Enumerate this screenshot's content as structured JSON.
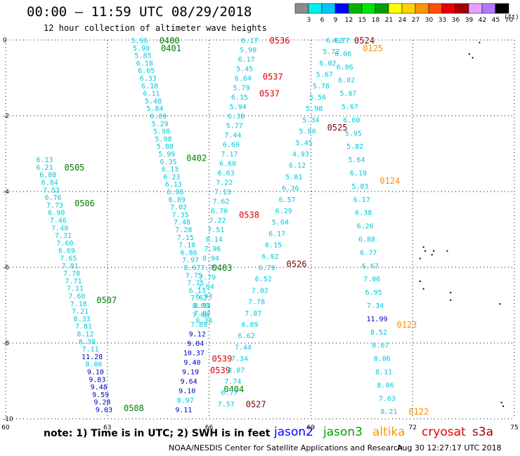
{
  "title": "00:00 – 11:59 UTC 08/29/2018",
  "subtitle": "12 hour collection of altimeter wave heights",
  "colorbar": {
    "ticks": [
      "3",
      "6",
      "9",
      "12",
      "15",
      "18",
      "21",
      "24",
      "27",
      "30",
      "33",
      "36",
      "39",
      "42",
      "45",
      "70"
    ],
    "unit": "(ft)",
    "colors": [
      "#8c8c8c",
      "#00f0f0",
      "#00c8ff",
      "#0000ff",
      "#00b400",
      "#00e600",
      "#00a000",
      "#ffff00",
      "#ffd200",
      "#ff9600",
      "#ff5000",
      "#e60000",
      "#a00000",
      "#e6a0ff",
      "#b478ff",
      "#000000"
    ]
  },
  "note": "note: 1) Time is in UTC; 2) SWH is in feet",
  "credit": "NOAA/NESDIS Center for Satellite Applications and Research",
  "generated": "Aug 30 12:27:17 UTC 2018",
  "satellites": [
    {
      "name": "jason2",
      "color": "#0000ff"
    },
    {
      "name": "jason3",
      "color": "#00a000"
    },
    {
      "name": "altika",
      "color": "#ff9600"
    },
    {
      "name": "cryosat",
      "color": "#e60000"
    },
    {
      "name": "s3a",
      "color": "#a00000"
    }
  ],
  "chart_data": {
    "type": "scatter",
    "title": "00:00 – 11:59 UTC 08/29/2018",
    "xlabel": "",
    "ylabel": "",
    "xlim": [
      60,
      75
    ],
    "ylim": [
      -10,
      0
    ],
    "xticks": [
      "60",
      "63",
      "66",
      "69",
      "72",
      "75"
    ],
    "yticks": [
      "0",
      "-2",
      "-4",
      "-6",
      "-8",
      "-10"
    ],
    "grid": true,
    "track_colors": {
      "low": "#00c8dc",
      "mid": "#0000c8"
    },
    "tracks": [
      {
        "points": [
          [
            61.15,
            -3.15
          ],
          [
            61.15,
            -3.35
          ],
          [
            61.25,
            -3.55
          ],
          [
            61.3,
            -3.75
          ],
          [
            61.35,
            -3.95
          ],
          [
            61.4,
            -4.15
          ],
          [
            61.45,
            -4.35
          ],
          [
            61.5,
            -4.55
          ],
          [
            61.55,
            -4.75
          ],
          [
            61.6,
            -4.95
          ],
          [
            61.7,
            -5.15
          ],
          [
            61.75,
            -5.35
          ],
          [
            61.8,
            -5.55
          ],
          [
            61.85,
            -5.75
          ],
          [
            61.9,
            -5.95
          ],
          [
            61.95,
            -6.15
          ],
          [
            62.0,
            -6.35
          ],
          [
            62.05,
            -6.55
          ],
          [
            62.1,
            -6.75
          ],
          [
            62.15,
            -6.95
          ],
          [
            62.2,
            -7.15
          ],
          [
            62.25,
            -7.35
          ],
          [
            62.3,
            -7.55
          ],
          [
            62.35,
            -7.75
          ],
          [
            62.4,
            -7.95
          ],
          [
            62.5,
            -8.15
          ],
          [
            62.55,
            -8.35
          ],
          [
            62.6,
            -8.55
          ],
          [
            62.65,
            -8.75
          ],
          [
            62.7,
            -8.95
          ],
          [
            62.75,
            -9.15
          ],
          [
            62.8,
            -9.35
          ],
          [
            62.85,
            -9.55
          ],
          [
            62.9,
            -9.75
          ]
        ],
        "values": [
          6.13,
          6.21,
          6.88,
          6.84,
          7.52,
          6.76,
          7.73,
          6.9,
          7.46,
          7.4,
          7.31,
          7.6,
          6.69,
          7.65,
          7.81,
          7.78,
          7.71,
          7.11,
          7.6,
          7.18,
          7.21,
          8.33,
          7.81,
          8.12,
          8.38,
          7.11,
          11.28,
          8.06,
          9.1,
          9.83,
          9.48,
          9.59,
          9.28,
          9.03
        ],
        "labels": [
          {
            "text": "0505",
            "lat": -3.35,
            "color": "#008000"
          },
          {
            "text": "0506",
            "lat": -4.3,
            "color": "#008000"
          },
          {
            "text": "0507",
            "lat": -6.85,
            "color": "#008000"
          },
          {
            "text": "0508",
            "lat": -9.7,
            "color": "#008000"
          }
        ]
      },
      {
        "points": [
          [
            63.95,
            0.0
          ],
          [
            64.0,
            -0.2
          ],
          [
            64.05,
            -0.4
          ],
          [
            64.1,
            -0.6
          ],
          [
            64.15,
            -0.8
          ],
          [
            64.2,
            -1.0
          ],
          [
            64.25,
            -1.2
          ],
          [
            64.3,
            -1.4
          ],
          [
            64.35,
            -1.6
          ],
          [
            64.4,
            -1.8
          ],
          [
            64.5,
            -2.0
          ],
          [
            64.55,
            -2.2
          ],
          [
            64.6,
            -2.4
          ],
          [
            64.65,
            -2.6
          ],
          [
            64.7,
            -2.8
          ],
          [
            64.75,
            -3.0
          ],
          [
            64.8,
            -3.2
          ],
          [
            64.85,
            -3.4
          ],
          [
            64.9,
            -3.6
          ],
          [
            64.95,
            -3.8
          ],
          [
            65.0,
            -4.0
          ],
          [
            65.05,
            -4.2
          ],
          [
            65.1,
            -4.4
          ],
          [
            65.15,
            -4.6
          ],
          [
            65.2,
            -4.8
          ],
          [
            65.25,
            -5.0
          ],
          [
            65.3,
            -5.2
          ],
          [
            65.35,
            -5.4
          ],
          [
            65.4,
            -5.6
          ],
          [
            65.45,
            -5.8
          ],
          [
            65.5,
            -6.0
          ],
          [
            65.55,
            -6.2
          ],
          [
            65.6,
            -6.4
          ],
          [
            65.65,
            -6.6
          ],
          [
            65.7,
            -6.8
          ],
          [
            65.75,
            -7.0
          ],
          [
            65.8,
            -7.2
          ],
          [
            65.85,
            -7.4
          ]
        ],
        "values": [
          5.96,
          5.9,
          5.85,
          6.18,
          6.05,
          6.33,
          6.18,
          6.11,
          5.48,
          5.84,
          6.09,
          5.29,
          5.98,
          5.98,
          5.88,
          5.99,
          6.35,
          6.13,
          6.23,
          6.13,
          6.98,
          6.89,
          7.02,
          7.35,
          7.48,
          7.28,
          7.15,
          7.1,
          6.86,
          7.97,
          8.67,
          7.75,
          7.75,
          6.13,
          7.62,
          8.0,
          7.82,
          8.38
        ],
        "labels": [
          {
            "text": "0400",
            "lat": 0.0,
            "color": "#008000"
          },
          {
            "text": "0401",
            "lat": -0.2,
            "color": "#008000"
          },
          {
            "text": "0402",
            "lat": -3.1,
            "color": "#008000"
          },
          {
            "text": "0403",
            "lat": -6.0,
            "color": "#008000"
          },
          {
            "text": "0404",
            "lat": -9.2,
            "color": "#008000"
          }
        ]
      },
      {
        "points": [
          [
            67.2,
            0.0
          ],
          [
            67.15,
            -0.25
          ],
          [
            67.1,
            -0.5
          ],
          [
            67.05,
            -0.75
          ],
          [
            67.0,
            -1.0
          ],
          [
            66.95,
            -1.25
          ],
          [
            66.9,
            -1.5
          ],
          [
            66.85,
            -1.75
          ],
          [
            66.8,
            -2.0
          ],
          [
            66.75,
            -2.25
          ],
          [
            66.7,
            -2.5
          ],
          [
            66.65,
            -2.75
          ],
          [
            66.6,
            -3.0
          ],
          [
            66.55,
            -3.25
          ],
          [
            66.5,
            -3.5
          ],
          [
            66.45,
            -3.75
          ],
          [
            66.4,
            -4.0
          ],
          [
            66.35,
            -4.25
          ],
          [
            66.3,
            -4.5
          ],
          [
            66.25,
            -4.75
          ],
          [
            66.2,
            -5.0
          ],
          [
            66.15,
            -5.25
          ],
          [
            66.1,
            -5.5
          ],
          [
            66.05,
            -5.75
          ],
          [
            66.0,
            -6.0
          ],
          [
            65.95,
            -6.25
          ],
          [
            65.9,
            -6.5
          ],
          [
            65.85,
            -6.75
          ],
          [
            65.8,
            -7.0
          ],
          [
            65.75,
            -7.25
          ],
          [
            65.7,
            -7.5
          ],
          [
            65.65,
            -7.75
          ],
          [
            65.6,
            -8.0
          ],
          [
            65.55,
            -8.25
          ],
          [
            65.5,
            -8.5
          ],
          [
            65.45,
            -8.75
          ],
          [
            65.4,
            -9.0
          ],
          [
            65.35,
            -9.25
          ],
          [
            65.3,
            -9.5
          ],
          [
            65.25,
            -9.75
          ]
        ],
        "values": [
          6.17,
          5.9,
          6.17,
          5.45,
          6.64,
          5.79,
          6.15,
          5.94,
          6.38,
          5.77,
          7.44,
          6.69,
          7.17,
          6.6,
          6.63,
          7.22,
          7.13,
          7.62,
          6.7,
          7.22,
          7.51,
          8.14,
          7.96,
          8.94,
          7.77,
          7.79,
          7.04,
          6.93,
          8.53,
          7.98,
          7.89,
          9.12,
          9.04,
          10.37,
          9.4,
          9.19,
          9.64,
          9.1,
          8.97,
          9.11
        ],
        "labels": [
          {
            "text": "0536",
            "lat": 0.0,
            "color": "#e00000"
          },
          {
            "text": "0537",
            "lat": -0.95,
            "color": "#e00000"
          },
          {
            "text": "0537",
            "lat": -1.4,
            "color": "#e00000"
          },
          {
            "text": "0538",
            "lat": -4.6,
            "color": "#e00000"
          },
          {
            "text": "0539",
            "lat": -8.4,
            "color": "#e00000"
          },
          {
            "text": "0539",
            "lat": -8.7,
            "color": "#e00000"
          }
        ]
      },
      {
        "points": [
          [
            69.7,
            0.0
          ],
          [
            69.6,
            -0.3
          ],
          [
            69.5,
            -0.6
          ],
          [
            69.4,
            -0.9
          ],
          [
            69.3,
            -1.2
          ],
          [
            69.2,
            -1.5
          ],
          [
            69.1,
            -1.8
          ],
          [
            69.0,
            -2.1
          ],
          [
            68.9,
            -2.4
          ],
          [
            68.8,
            -2.7
          ],
          [
            68.7,
            -3.0
          ],
          [
            68.6,
            -3.3
          ],
          [
            68.5,
            -3.6
          ],
          [
            68.4,
            -3.9
          ],
          [
            68.3,
            -4.2
          ],
          [
            68.2,
            -4.5
          ],
          [
            68.1,
            -4.8
          ],
          [
            68.0,
            -5.1
          ],
          [
            67.9,
            -5.4
          ],
          [
            67.8,
            -5.7
          ],
          [
            67.7,
            -6.0
          ],
          [
            67.6,
            -6.3
          ],
          [
            67.5,
            -6.6
          ],
          [
            67.4,
            -6.9
          ],
          [
            67.3,
            -7.2
          ],
          [
            67.2,
            -7.5
          ],
          [
            67.1,
            -7.8
          ],
          [
            67.0,
            -8.1
          ],
          [
            66.9,
            -8.4
          ],
          [
            66.8,
            -8.7
          ],
          [
            66.7,
            -9.0
          ],
          [
            66.6,
            -9.3
          ],
          [
            66.5,
            -9.6
          ]
        ],
        "values": [
          6.02,
          5.72,
          6.02,
          5.67,
          5.78,
          5.56,
          5.98,
          5.34,
          5.8,
          5.45,
          4.93,
          6.12,
          5.81,
          6.36,
          6.57,
          6.29,
          5.64,
          6.17,
          6.15,
          6.92,
          6.79,
          6.52,
          7.02,
          7.78,
          7.87,
          6.89,
          6.62,
          7.44,
          7.34,
          8.07,
          7.74,
          6.77,
          7.57
        ],
        "labels": [
          {
            "text": "0524",
            "lat": 0.0,
            "color": "#800000"
          },
          {
            "text": "0525",
            "lat": -2.3,
            "color": "#800000"
          },
          {
            "text": "0526",
            "lat": -5.9,
            "color": "#800000"
          },
          {
            "text": "0527",
            "lat": -9.6,
            "color": "#800000"
          }
        ]
      },
      {
        "points": [
          [
            69.9,
            0.0
          ],
          [
            69.95,
            -0.35
          ],
          [
            70.0,
            -0.7
          ],
          [
            70.05,
            -1.05
          ],
          [
            70.1,
            -1.4
          ],
          [
            70.15,
            -1.75
          ],
          [
            70.2,
            -2.1
          ],
          [
            70.25,
            -2.45
          ],
          [
            70.3,
            -2.8
          ],
          [
            70.35,
            -3.15
          ],
          [
            70.4,
            -3.5
          ],
          [
            70.45,
            -3.85
          ],
          [
            70.5,
            -4.2
          ],
          [
            70.55,
            -4.55
          ],
          [
            70.6,
            -4.9
          ],
          [
            70.65,
            -5.25
          ],
          [
            70.7,
            -5.6
          ],
          [
            70.75,
            -5.95
          ],
          [
            70.8,
            -6.3
          ],
          [
            70.85,
            -6.65
          ],
          [
            70.9,
            -7.0
          ],
          [
            70.95,
            -7.35
          ],
          [
            71.0,
            -7.7
          ],
          [
            71.05,
            -8.05
          ],
          [
            71.1,
            -8.4
          ],
          [
            71.15,
            -8.75
          ],
          [
            71.2,
            -9.1
          ],
          [
            71.25,
            -9.45
          ],
          [
            71.3,
            -9.8
          ]
        ],
        "values": [
          4.77,
          6.06,
          6.06,
          6.02,
          5.87,
          5.67,
          6.0,
          5.95,
          5.82,
          5.64,
          6.19,
          5.83,
          6.17,
          6.38,
          6.26,
          6.88,
          6.77,
          6.67,
          7.06,
          6.95,
          7.34,
          11.99,
          8.52,
          8.07,
          8.06,
          8.11,
          8.06,
          7.63,
          8.21
        ],
        "labels": [
          {
            "text": "0125",
            "lat": -0.2,
            "color": "#ff8c00"
          },
          {
            "text": "0124",
            "lat": -3.7,
            "color": "#ff8c00"
          },
          {
            "text": "0123",
            "lat": -7.5,
            "color": "#ff8c00"
          },
          {
            "text": "0122",
            "lat": -9.8,
            "color": "#ff8c00"
          }
        ]
      }
    ]
  }
}
